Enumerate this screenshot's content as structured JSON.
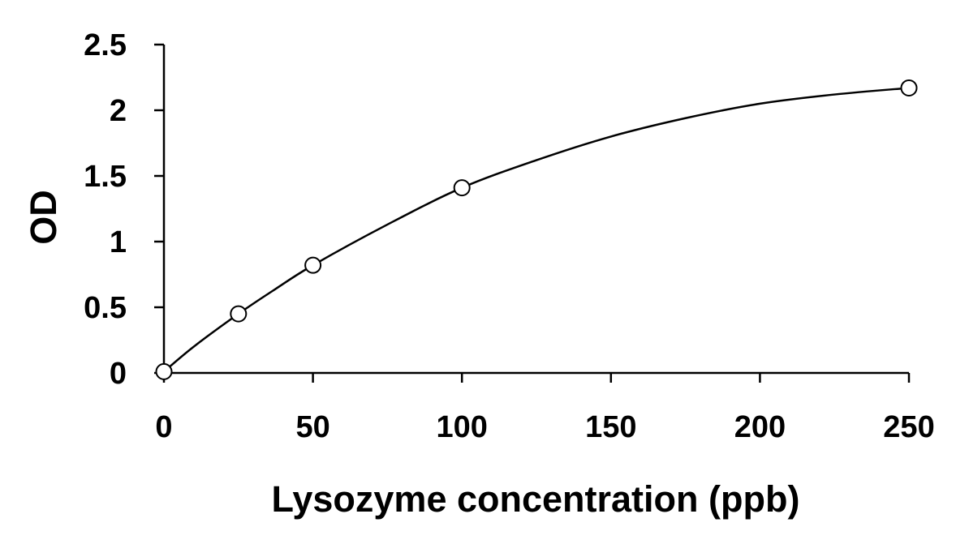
{
  "chart_data": {
    "type": "scatter",
    "title": "",
    "xlabel": "Lysozyme concentration (ppb)",
    "ylabel": "OD",
    "xlim": [
      0,
      250
    ],
    "ylim": [
      0,
      2.5
    ],
    "xticks": [
      0,
      50,
      100,
      150,
      200,
      250
    ],
    "xtick_labels": [
      "0",
      "50",
      "100",
      "150",
      "200",
      "250"
    ],
    "yticks": [
      0,
      0.5,
      1,
      1.5,
      2,
      2.5
    ],
    "ytick_labels": [
      "0",
      "0.5",
      "1",
      "1.5",
      "2",
      "2.5"
    ],
    "grid": false,
    "legend": "none",
    "marker": "open-circle",
    "line_color": "#000000",
    "series": [
      {
        "x": [
          0,
          25,
          50,
          100,
          250
        ],
        "y": [
          0.01,
          0.45,
          0.82,
          1.41,
          2.17
        ]
      }
    ],
    "fit_curve": {
      "style": "smooth",
      "x": [
        0,
        10,
        25,
        37.5,
        50,
        75,
        100,
        125,
        150,
        175,
        200,
        225,
        250
      ],
      "y": [
        0.01,
        0.2,
        0.45,
        0.64,
        0.82,
        1.13,
        1.41,
        1.62,
        1.8,
        1.94,
        2.05,
        2.12,
        2.17
      ]
    }
  }
}
